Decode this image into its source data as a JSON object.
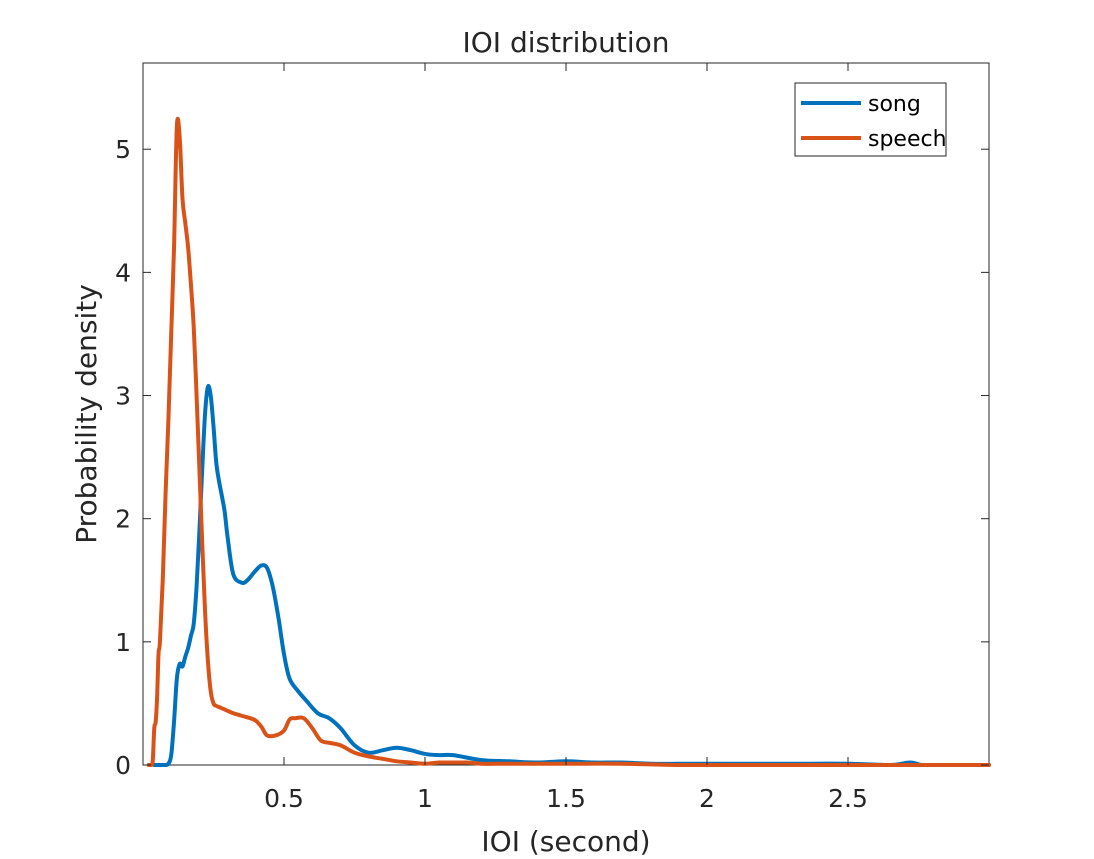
{
  "chart_data": {
    "type": "line",
    "title": "IOI distribution",
    "xlabel": "IOI (second)",
    "ylabel": "Probability density",
    "xlim": [
      0,
      3
    ],
    "ylim": [
      0,
      5.7
    ],
    "xticks": [
      0.5,
      1,
      1.5,
      2,
      2.5
    ],
    "xtick_labels": [
      "0.5",
      "1",
      "1.5",
      "2",
      "2.5"
    ],
    "yticks": [
      0,
      1,
      2,
      3,
      4,
      5
    ],
    "ytick_labels": [
      "0",
      "1",
      "2",
      "3",
      "4",
      "5"
    ],
    "grid": false,
    "legend_position": "top-right",
    "series": [
      {
        "name": "song",
        "color": "#0072BD",
        "x": [
          0.04,
          0.06,
          0.08,
          0.09,
          0.1,
          0.11,
          0.12,
          0.13,
          0.14,
          0.15,
          0.16,
          0.17,
          0.18,
          0.19,
          0.2,
          0.21,
          0.22,
          0.23,
          0.24,
          0.25,
          0.26,
          0.27,
          0.28,
          0.29,
          0.3,
          0.32,
          0.35,
          0.37,
          0.4,
          0.42,
          0.44,
          0.46,
          0.48,
          0.5,
          0.52,
          0.55,
          0.58,
          0.62,
          0.66,
          0.7,
          0.75,
          0.8,
          0.85,
          0.9,
          0.95,
          1.0,
          1.05,
          1.1,
          1.2,
          1.3,
          1.4,
          1.5,
          1.6,
          1.7,
          1.8,
          1.9,
          2.0,
          2.1,
          2.3,
          2.5,
          2.65,
          2.72,
          2.76,
          2.8,
          2.9,
          3.0
        ],
        "y": [
          0,
          0,
          0,
          0.01,
          0.08,
          0.35,
          0.7,
          0.82,
          0.8,
          0.88,
          0.95,
          1.05,
          1.15,
          1.45,
          1.9,
          2.4,
          2.85,
          3.07,
          3.0,
          2.75,
          2.45,
          2.3,
          2.18,
          2.05,
          1.85,
          1.55,
          1.48,
          1.5,
          1.58,
          1.62,
          1.6,
          1.45,
          1.2,
          0.9,
          0.7,
          0.6,
          0.52,
          0.42,
          0.38,
          0.3,
          0.16,
          0.1,
          0.12,
          0.14,
          0.12,
          0.09,
          0.08,
          0.08,
          0.04,
          0.03,
          0.02,
          0.03,
          0.02,
          0.02,
          0.01,
          0.01,
          0.01,
          0.01,
          0.01,
          0.01,
          0.0,
          0.02,
          0.0,
          0.0,
          0.0,
          0.0
        ]
      },
      {
        "name": "speech",
        "color": "#D95319",
        "x": [
          0.02,
          0.03,
          0.035,
          0.04,
          0.045,
          0.05,
          0.055,
          0.06,
          0.07,
          0.08,
          0.09,
          0.1,
          0.11,
          0.12,
          0.13,
          0.14,
          0.15,
          0.16,
          0.17,
          0.18,
          0.19,
          0.2,
          0.21,
          0.22,
          0.23,
          0.24,
          0.25,
          0.26,
          0.27,
          0.28,
          0.29,
          0.3,
          0.32,
          0.35,
          0.38,
          0.4,
          0.42,
          0.44,
          0.47,
          0.5,
          0.52,
          0.54,
          0.57,
          0.6,
          0.63,
          0.66,
          0.7,
          0.75,
          0.8,
          0.85,
          0.9,
          0.95,
          1.0,
          1.05,
          1.1,
          1.15,
          1.2,
          1.25,
          1.35,
          1.5,
          1.7,
          1.9,
          2.1,
          2.5,
          3.0
        ],
        "y": [
          0,
          0,
          0.05,
          0.3,
          0.35,
          0.55,
          0.9,
          1.0,
          1.5,
          2.2,
          2.8,
          3.5,
          4.2,
          5.18,
          5.1,
          4.6,
          4.4,
          4.2,
          3.9,
          3.55,
          3.0,
          2.4,
          1.8,
          1.25,
          0.85,
          0.6,
          0.5,
          0.48,
          0.47,
          0.46,
          0.45,
          0.44,
          0.42,
          0.4,
          0.38,
          0.36,
          0.31,
          0.24,
          0.24,
          0.28,
          0.37,
          0.38,
          0.38,
          0.3,
          0.2,
          0.18,
          0.16,
          0.1,
          0.07,
          0.05,
          0.03,
          0.02,
          0.01,
          0.02,
          0.02,
          0.02,
          0.01,
          0.01,
          0.01,
          0.01,
          0.01,
          0.0,
          0.0,
          0.0,
          0.0
        ]
      }
    ]
  }
}
